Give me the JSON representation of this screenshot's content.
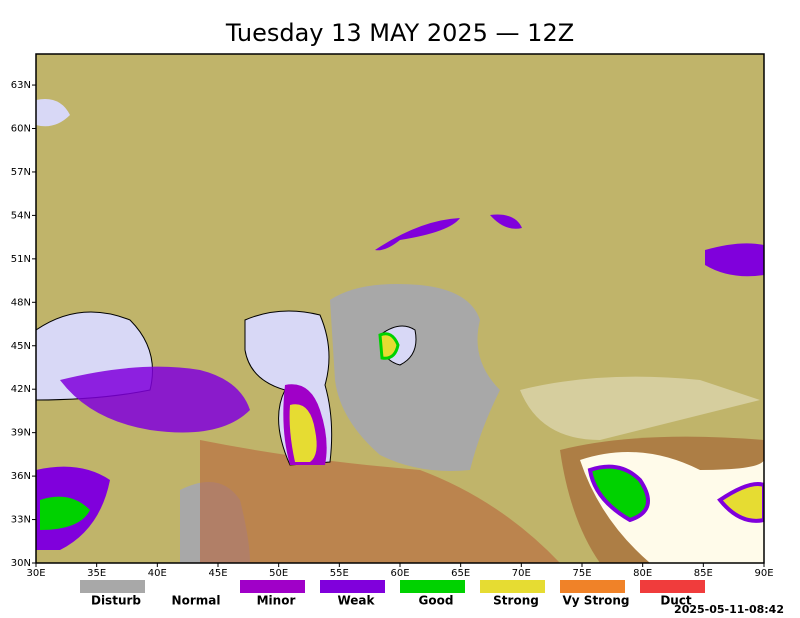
{
  "title": "Tuesday 13 MAY 2025 — 12Z",
  "map": {
    "lat_labels": [
      "30N",
      "33N",
      "36N",
      "39N",
      "42N",
      "45N",
      "48N",
      "51N",
      "54N",
      "57N",
      "60N",
      "63N"
    ],
    "lon_labels": [
      "30E",
      "35E",
      "40E",
      "45E",
      "50E",
      "55E",
      "60E",
      "65E",
      "70E",
      "75E",
      "80E",
      "85E",
      "90E"
    ]
  },
  "legend": [
    {
      "label": "Disturb",
      "color": "#a8a8a8"
    },
    {
      "label": "Normal",
      "color": "#ffffff"
    },
    {
      "label": "Minor",
      "color": "#a000c8"
    },
    {
      "label": "Weak",
      "color": "#8000dc"
    },
    {
      "label": "Good",
      "color": "#00d200"
    },
    {
      "label": "Strong",
      "color": "#e6dc32"
    },
    {
      "label": "Vy Strong",
      "color": "#f08228"
    },
    {
      "label": "Duct",
      "color": "#f03c3c"
    }
  ],
  "timestamp": "2025-05-11-08:42"
}
